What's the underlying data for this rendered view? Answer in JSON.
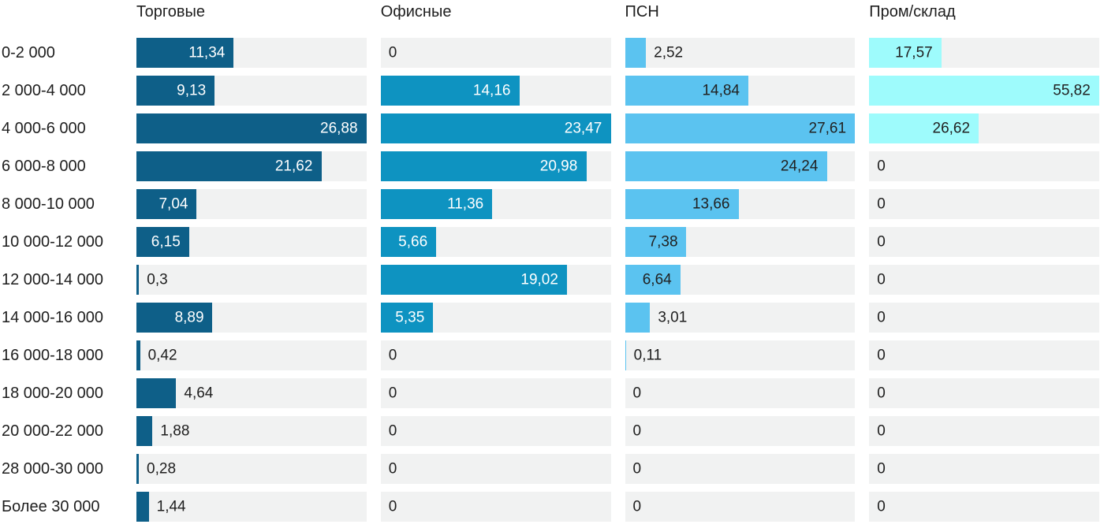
{
  "chart_data": {
    "type": "bar",
    "orientation": "horizontal",
    "layout": "small-multiples-columns",
    "scale": "per-series-max",
    "grid": false,
    "value_format": "decimal-comma",
    "track_color": "#f1f2f2",
    "text_color": "#1e1e1e",
    "categories": [
      "0-2 000",
      "2 000-4 000",
      "4 000-6 000",
      "6 000-8 000",
      "8 000-10 000",
      "10 000-12 000",
      "12 000-14 000",
      "14 000-16 000",
      "16 000-18 000",
      "18 000-20 000",
      "20 000-22 000",
      "28 000-30 000",
      "Более 30 000"
    ],
    "series": [
      {
        "name": "Торговые",
        "color": "#0e5f88",
        "inside_label_color": "#ffffff",
        "values": [
          11.34,
          9.13,
          26.88,
          21.62,
          7.04,
          6.15,
          0.3,
          8.89,
          0.42,
          4.64,
          1.88,
          0.28,
          1.44
        ]
      },
      {
        "name": "Офисные",
        "color": "#0e93c1",
        "inside_label_color": "#ffffff",
        "values": [
          0,
          14.16,
          23.47,
          20.98,
          11.36,
          5.66,
          19.02,
          5.35,
          0,
          0,
          0,
          0,
          0
        ]
      },
      {
        "name": "ПСН",
        "color": "#5bc3f0",
        "inside_label_color": "#212121",
        "values": [
          2.52,
          14.84,
          27.61,
          24.24,
          13.66,
          7.38,
          6.64,
          3.01,
          0.11,
          0,
          0,
          0,
          0
        ]
      },
      {
        "name": "Пром/склад",
        "color": "#9efbfc",
        "inside_label_color": "#212121",
        "values": [
          17.57,
          55.82,
          26.62,
          0,
          0,
          0,
          0,
          0,
          0,
          0,
          0,
          0,
          0
        ]
      }
    ]
  }
}
